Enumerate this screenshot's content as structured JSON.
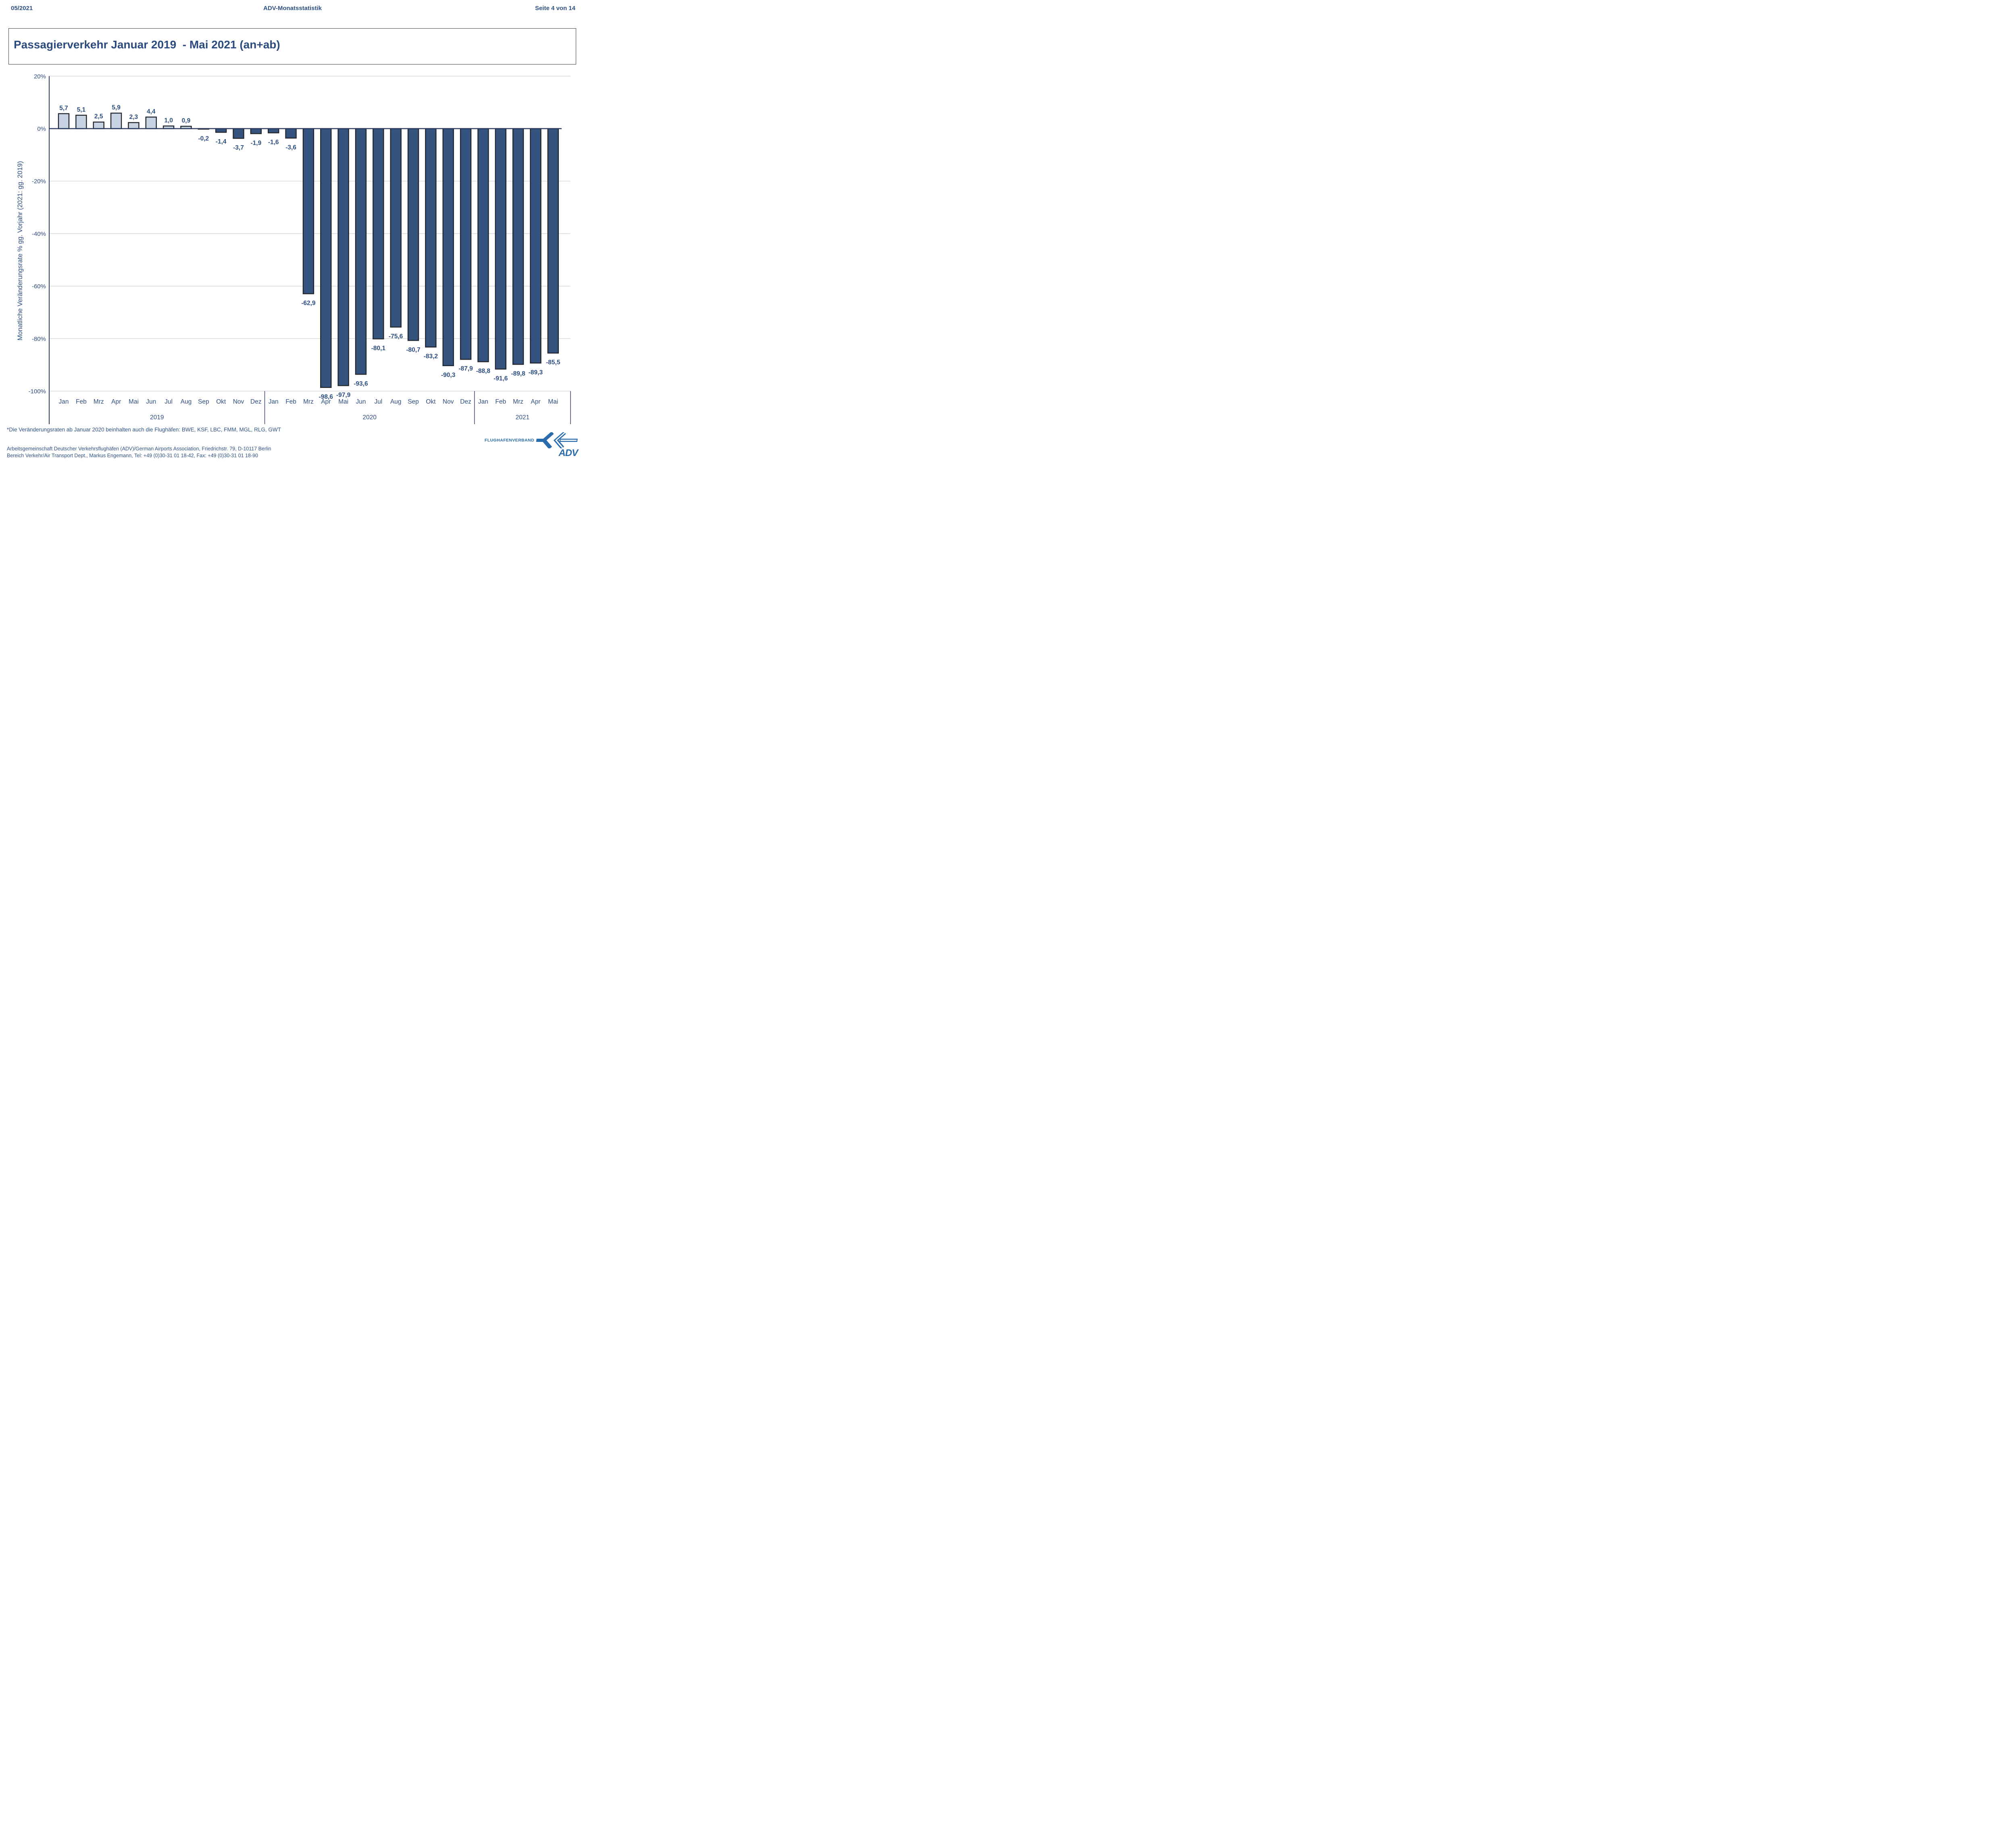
{
  "header": {
    "left": "05/2021",
    "center": "ADV-Monatsstatistik",
    "right": "Seite 4 von 14"
  },
  "title": "Passagierverkehr Januar 2019  - Mai 2021 (an+ab)",
  "chart_data": {
    "type": "bar",
    "title": "Passagierverkehr Januar 2019  - Mai 2021 (an+ab)",
    "xlabel": "",
    "ylabel": "Monatliche Veränderungsrate % gg. Vorjahr (2021: gg. 2019)",
    "ylim": [
      -100,
      20
    ],
    "ytick_percent": [
      20,
      0,
      -20,
      -40,
      -60,
      -80,
      -100
    ],
    "ytick_labels": [
      "20%",
      "0%",
      "-20%",
      "-40%",
      "-60%",
      "-80%",
      "-100%"
    ],
    "grid": true,
    "legend_position": "none",
    "groups": [
      {
        "year": "2019",
        "months": [
          "Jan",
          "Feb",
          "Mrz",
          "Apr",
          "Mai",
          "Jun",
          "Jul",
          "Aug",
          "Sep",
          "Okt",
          "Nov",
          "Dez"
        ],
        "values": [
          5.7,
          5.1,
          2.5,
          5.9,
          2.3,
          4.4,
          1.0,
          0.9,
          -0.2,
          -1.4,
          -3.7,
          -1.9
        ],
        "labels": [
          "5,7",
          "5,1",
          "2,5",
          "5,9",
          "2,3",
          "4,4",
          "1,0",
          "0,9",
          "-0,2",
          "-1,4",
          "-3,7",
          "-1,9"
        ]
      },
      {
        "year": "2020",
        "months": [
          "Jan",
          "Feb",
          "Mrz",
          "Apr",
          "Mai",
          "Jun",
          "Jul",
          "Aug",
          "Sep",
          "Okt",
          "Nov",
          "Dez"
        ],
        "values": [
          -1.6,
          -3.6,
          -62.9,
          -98.6,
          -97.9,
          -93.6,
          -80.1,
          -75.6,
          -80.7,
          -83.2,
          -90.3,
          -87.9
        ],
        "labels": [
          "-1,6",
          "-3,6",
          "-62,9",
          "-98,6",
          "-97,9",
          "-93,6",
          "-80,1",
          "-75,6",
          "-80,7",
          "-83,2",
          "-90,3",
          "-87,9"
        ]
      },
      {
        "year": "2021",
        "months": [
          "Jan",
          "Feb",
          "Mrz",
          "Apr",
          "Mai"
        ],
        "values": [
          -88.8,
          -91.6,
          -89.8,
          -89.3,
          -85.5
        ],
        "labels": [
          "-88,8",
          "-91,6",
          "-89,8",
          "-89,3",
          "-85,5"
        ]
      }
    ],
    "colors": {
      "positive_bar_fill": "#C7D2E2",
      "negative_bar_fill": "#34537F",
      "bar_outline": "#20242B",
      "zero_line": "#2B3A63",
      "axis_line": "#2B3A63",
      "grid_line": "#D8D8D8",
      "divider_line": "#33436B",
      "label_text": "#2D4E81"
    }
  },
  "footnote": "*Die Veränderungsraten ab Januar 2020 beinhalten auch die Flughäfen: BWE, KSF, LBC, FMM, MGL, RLG, GWT",
  "footer": {
    "line1": "Arbeitsgemeinschaft Deutscher Verkehrsflughäfen (ADV)/German Airports Association, Friedrichstr. 79, D-10117 Berlin",
    "line2": "Bereich Verkehr/Air Transport Dept., Markus Engemann, Tel: +49 (0)30-31 01 18-42, Fax: +49 (0)30-31 01 18-90"
  },
  "logo": {
    "top": "FLUGHAFENVERBAND",
    "bottom": "ADV",
    "color": "#2A6CAC"
  }
}
